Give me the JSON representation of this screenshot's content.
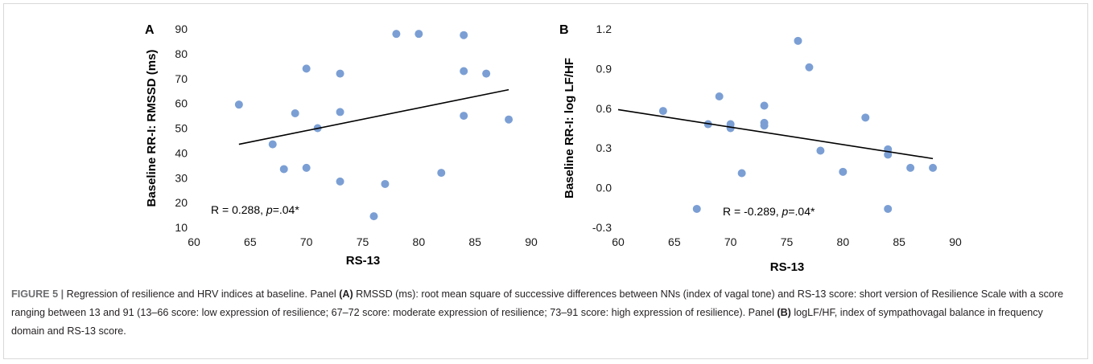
{
  "chart_data": [
    {
      "type": "scatter",
      "panel": "A",
      "xlabel": "RS-13",
      "ylabel": "Baseline RR-I: RMSSD (ms)",
      "xlim": [
        60,
        90
      ],
      "ylim": [
        10,
        90
      ],
      "x_ticks": [
        "60",
        "65",
        "70",
        "75",
        "80",
        "85",
        "90"
      ],
      "y_ticks": [
        "10",
        "20",
        "30",
        "40",
        "50",
        "60",
        "70",
        "80",
        "90"
      ],
      "grid": false,
      "points": [
        {
          "x": 64,
          "y": 59.5
        },
        {
          "x": 67,
          "y": 43.5
        },
        {
          "x": 68,
          "y": 33.5
        },
        {
          "x": 69,
          "y": 56
        },
        {
          "x": 70,
          "y": 74
        },
        {
          "x": 70,
          "y": 34
        },
        {
          "x": 71,
          "y": 50
        },
        {
          "x": 73,
          "y": 72
        },
        {
          "x": 73,
          "y": 56.5
        },
        {
          "x": 73,
          "y": 28.5
        },
        {
          "x": 76,
          "y": 14.5
        },
        {
          "x": 77,
          "y": 27.5
        },
        {
          "x": 78,
          "y": 88
        },
        {
          "x": 80,
          "y": 88
        },
        {
          "x": 82,
          "y": 32
        },
        {
          "x": 84,
          "y": 87.5
        },
        {
          "x": 84,
          "y": 73
        },
        {
          "x": 84,
          "y": 55
        },
        {
          "x": 86,
          "y": 72
        },
        {
          "x": 88,
          "y": 53.5
        }
      ],
      "trendline": {
        "x": [
          64,
          88
        ],
        "y": [
          43.5,
          65.5
        ]
      },
      "annotation": {
        "prefix": "R = 0.288, ",
        "p": "p",
        "suffix": "=.04*"
      },
      "marker_color": "#7b9fd4",
      "line_color": "#000000"
    },
    {
      "type": "scatter",
      "panel": "B",
      "xlabel": "RS-13",
      "ylabel": "Baseline RR-I: log LF/HF",
      "xlim": [
        60,
        90
      ],
      "ylim": [
        -0.3,
        1.2
      ],
      "x_ticks": [
        "60",
        "65",
        "70",
        "75",
        "80",
        "85",
        "90"
      ],
      "y_ticks": [
        "-0.3",
        "0.0",
        "0.3",
        "0.6",
        "0.9",
        "1.2"
      ],
      "grid": false,
      "points": [
        {
          "x": 64,
          "y": 0.58
        },
        {
          "x": 67,
          "y": -0.16
        },
        {
          "x": 68,
          "y": 0.48
        },
        {
          "x": 69,
          "y": 0.69
        },
        {
          "x": 70,
          "y": 0.48
        },
        {
          "x": 70,
          "y": 0.45
        },
        {
          "x": 71,
          "y": 0.11
        },
        {
          "x": 73,
          "y": 0.62
        },
        {
          "x": 73,
          "y": 0.49
        },
        {
          "x": 73,
          "y": 0.47
        },
        {
          "x": 76,
          "y": 1.11
        },
        {
          "x": 77,
          "y": 0.91
        },
        {
          "x": 78,
          "y": 0.28
        },
        {
          "x": 80,
          "y": 0.12
        },
        {
          "x": 82,
          "y": 0.53
        },
        {
          "x": 84,
          "y": 0.29
        },
        {
          "x": 84,
          "y": 0.25
        },
        {
          "x": 84,
          "y": -0.16
        },
        {
          "x": 86,
          "y": 0.15
        },
        {
          "x": 88,
          "y": 0.15
        }
      ],
      "trendline": {
        "x": [
          60,
          88
        ],
        "y": [
          0.59,
          0.22
        ]
      },
      "annotation": {
        "prefix": "R = -0.289, ",
        "p": "p",
        "suffix": "=.04*"
      },
      "marker_color": "#7b9fd4",
      "line_color": "#000000"
    }
  ],
  "caption": {
    "label": "FIGURE 5 |",
    "t1": " Regression of resilience and HRV indices at baseline. Panel ",
    "pa": "(A)",
    "t2": " RMSSD (ms): root mean square of successive differences between NNs (index of vagal tone) and RS-13 score: short version of Resilience Scale with a score ranging between 13 and 91 (13–66 score: low expression of resilience; 67–72 score: moderate expression of resilience; 73–91 score: high expression of resilience). Panel ",
    "pb": "(B)",
    "t3": " logLF/HF, index of sympathovagal balance in frequency domain and RS-13 score."
  }
}
